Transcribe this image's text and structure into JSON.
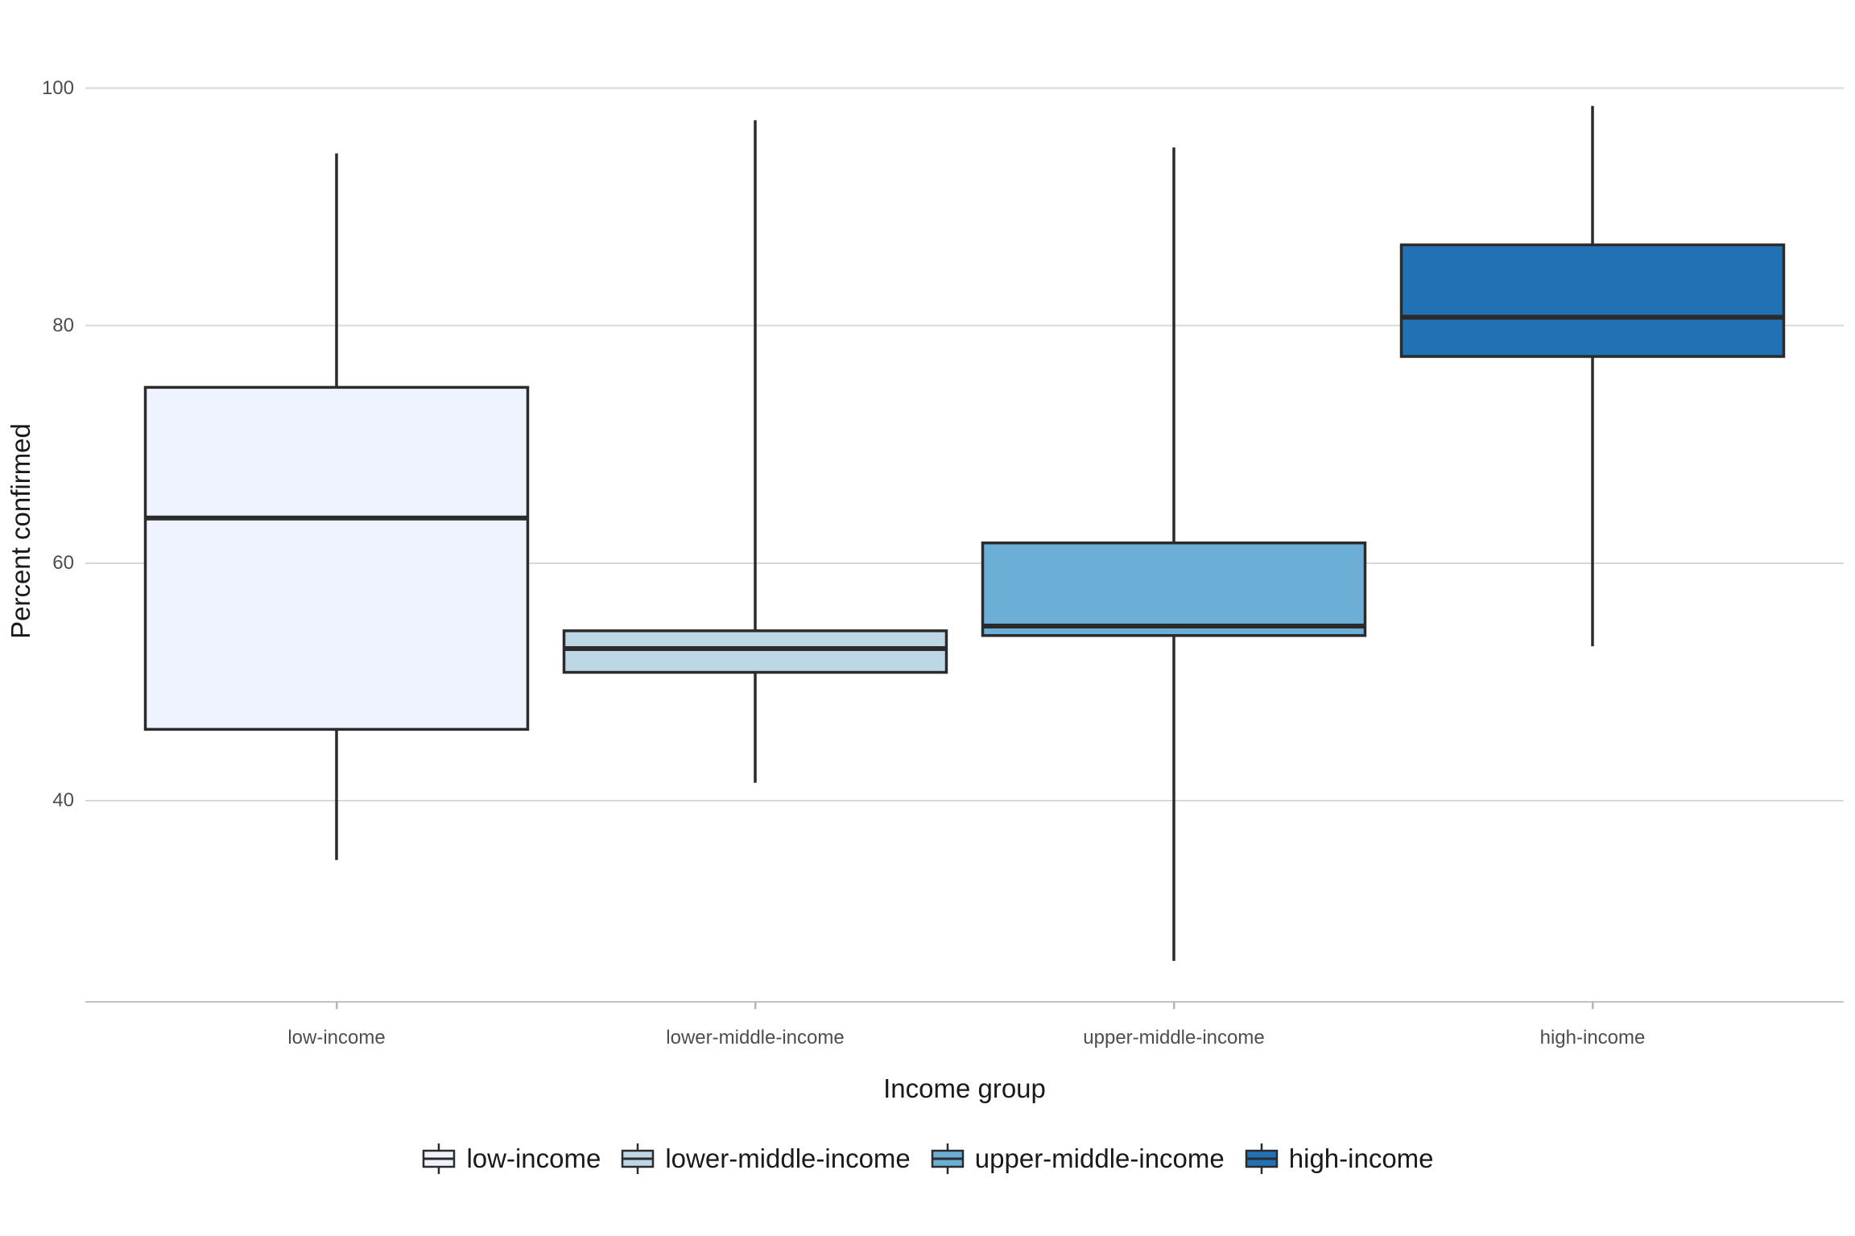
{
  "chart_data": {
    "type": "boxplot",
    "title": "",
    "xlabel": "Income group",
    "ylabel": "Percent confirmed",
    "categories": [
      "low-income",
      "lower-middle-income",
      "upper-middle-income",
      "high-income"
    ],
    "y_ticks": [
      100,
      80,
      60,
      40
    ],
    "ylim": [
      23,
      104.5
    ],
    "grid": "horizontal-major-only",
    "legend_position": "bottom-center",
    "colors": {
      "box_border": "#2B2B2B",
      "median_line": "#2B2B2B",
      "gridline": "#D8D8D8",
      "axis_line": "#C2C2C2",
      "tick_mark": "#B5B5B5",
      "background": "#FFFFFF"
    },
    "series": [
      {
        "name": "low-income",
        "fill": "#EFF3FF",
        "whisker_low": 35.0,
        "q1": 46.0,
        "median": 63.8,
        "q3": 74.8,
        "whisker_high": 94.5
      },
      {
        "name": "lower-middle-income",
        "fill": "#BDD7E7",
        "whisker_low": 41.5,
        "q1": 50.8,
        "median": 52.8,
        "q3": 54.3,
        "whisker_high": 97.3
      },
      {
        "name": "upper-middle-income",
        "fill": "#6BAED6",
        "whisker_low": 26.5,
        "q1": 53.9,
        "median": 54.7,
        "q3": 61.7,
        "whisker_high": 95.0
      },
      {
        "name": "high-income",
        "fill": "#2171B5",
        "whisker_low": 53.0,
        "q1": 77.4,
        "median": 80.7,
        "q3": 86.8,
        "whisker_high": 98.5
      }
    ]
  }
}
